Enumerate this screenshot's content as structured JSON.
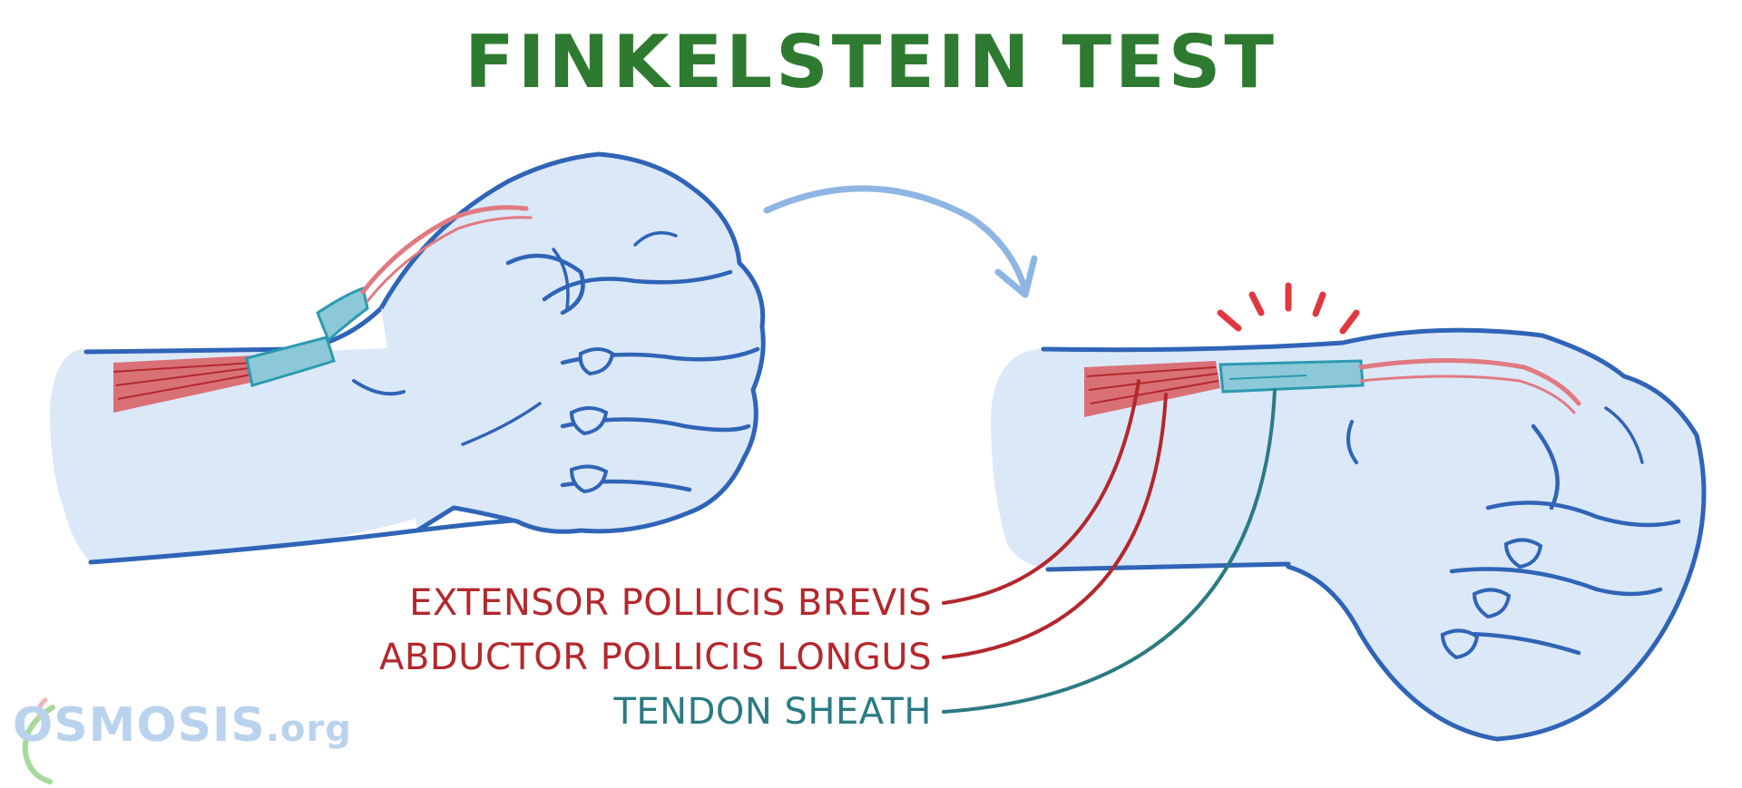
{
  "title": "FINKELSTEIN TEST",
  "labels": {
    "epb": "EXTENSOR POLLICIS BREVIS",
    "apl": "ABDUCTOR POLLICIS LONGUS",
    "sheath": "TENDON SHEATH"
  },
  "logo": {
    "main": "OSMOSIS",
    "suffix": ".org"
  },
  "colors": {
    "title": "#2e7a30",
    "epb": "#b3282d",
    "apl": "#b3282d",
    "sheath": "#2b7b83",
    "skin": "#dbe8f8",
    "outline": "#2f64b7",
    "muscle": "#d85a5f",
    "sheath_fill": "#8cc8d8",
    "arrow": "#8fb5e4",
    "pain": "#e0383e"
  },
  "icons": [
    "curved-arrow-icon",
    "pain-burst-icon",
    "osmosis-logo-icon"
  ]
}
